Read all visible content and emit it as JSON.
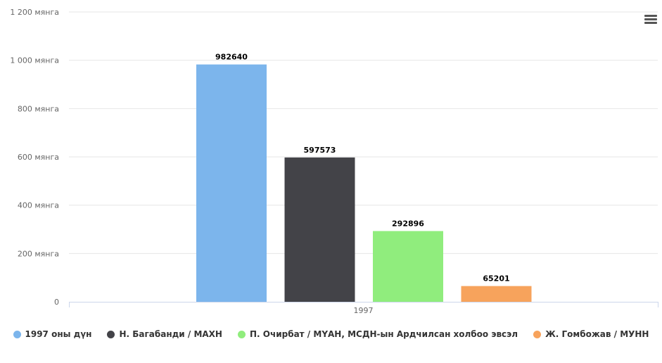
{
  "chart_data": {
    "type": "bar",
    "categories": [
      "1997"
    ],
    "series": [
      {
        "name": "1997 оны дүн",
        "values": [
          982640
        ],
        "color": "#7cb5ec"
      },
      {
        "name": "Н. Багабанди / МАХН",
        "values": [
          597573
        ],
        "color": "#434348"
      },
      {
        "name": "П. Очирбат / МҮАН, МСДН-ын Ардчилсан холбоо эвсэл",
        "values": [
          292896
        ],
        "color": "#90ed7d"
      },
      {
        "name": "Ж. Гомбожав / МУНН",
        "values": [
          65201
        ],
        "color": "#f7a35c"
      }
    ],
    "yticks": [
      "0",
      "200 мянга",
      "400 мянга",
      "600 мянга",
      "800 мянга",
      "1 000 мянга",
      "1 200 мянга"
    ],
    "ylim": [
      0,
      1200000
    ],
    "title": "",
    "xlabel": "",
    "ylabel": "",
    "grid": true,
    "legend_position": "bottom-center",
    "data_labels": [
      "982640",
      "597573",
      "292896",
      "65201"
    ]
  },
  "menu_icon": "hamburger-menu-icon"
}
